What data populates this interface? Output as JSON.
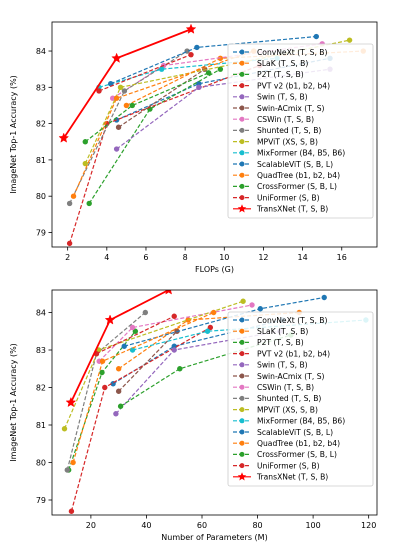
{
  "chart_data": [
    {
      "type": "line",
      "xlabel": "FLOPs (G)",
      "ylabel": "ImageNet Top-1 Accuracy (%)",
      "xlim": [
        1.2,
        17.8
      ],
      "ylim": [
        78.6,
        84.8
      ],
      "xticks": [
        2,
        4,
        6,
        8,
        10,
        12,
        14,
        16
      ],
      "yticks": [
        79,
        80,
        81,
        82,
        83,
        84
      ],
      "grid": false,
      "legend": "right",
      "series": [
        {
          "name": "ConvNeXt (T, S, B)",
          "color": "#1f77b4",
          "marker": "circle",
          "dashed": true,
          "x": [
            4.5,
            8.7,
            15.4
          ],
          "y": [
            82.1,
            83.1,
            83.8
          ]
        },
        {
          "name": "SLaK (T, S, B)",
          "color": "#ff7f0e",
          "marker": "circle",
          "dashed": true,
          "x": [
            5.0,
            9.8,
            17.1
          ],
          "y": [
            82.5,
            83.8,
            84.0
          ]
        },
        {
          "name": "P2T (T, S, B)",
          "color": "#2ca02c",
          "marker": "circle",
          "dashed": true,
          "x": [
            3.1,
            6.2,
            9.8
          ],
          "y": [
            79.8,
            82.4,
            83.5
          ]
        },
        {
          "name": "PVT v2 (b1, b2, b4)",
          "color": "#d62728",
          "marker": "circle",
          "dashed": true,
          "x": [
            2.1,
            4.0,
            11.8
          ],
          "y": [
            78.7,
            82.0,
            83.6
          ]
        },
        {
          "name": "Swin (T, S, B)",
          "color": "#9467bd",
          "marker": "circle",
          "dashed": true,
          "x": [
            4.5,
            8.7,
            15.4
          ],
          "y": [
            81.3,
            83.0,
            83.5
          ]
        },
        {
          "name": "Swin-ACmix (T, S)",
          "color": "#8c564b",
          "marker": "circle",
          "dashed": true,
          "x": [
            4.6,
            9.0
          ],
          "y": [
            81.9,
            83.5
          ]
        },
        {
          "name": "CSWin (T, S, B)",
          "color": "#e377c2",
          "marker": "circle",
          "dashed": true,
          "x": [
            4.3,
            6.9,
            15.0
          ],
          "y": [
            82.7,
            83.6,
            84.2
          ]
        },
        {
          "name": "Shunted (T, S, B)",
          "color": "#7f7f7f",
          "marker": "circle",
          "dashed": true,
          "x": [
            2.1,
            4.9,
            8.1
          ],
          "y": [
            79.8,
            82.9,
            84.0
          ]
        },
        {
          "name": "MPViT (XS, S, B)",
          "color": "#bcbd22",
          "marker": "circle",
          "dashed": true,
          "x": [
            2.9,
            4.7,
            16.4
          ],
          "y": [
            80.9,
            83.0,
            84.3
          ]
        },
        {
          "name": "MixFormer (B4, B5, B6)",
          "color": "#17becf",
          "marker": "circle",
          "dashed": true,
          "x": [
            3.6,
            6.8,
            12.7
          ],
          "y": [
            83.0,
            83.5,
            83.8
          ]
        },
        {
          "name": "ScalableViT (S, B, L)",
          "color": "#1f77b4",
          "marker": "circle",
          "dashed": true,
          "x": [
            4.2,
            8.6,
            14.7
          ],
          "y": [
            83.1,
            84.1,
            84.4
          ]
        },
        {
          "name": "QuadTree (b1, b2, b4)",
          "color": "#ff7f0e",
          "marker": "circle",
          "dashed": true,
          "x": [
            2.3,
            4.5,
            11.5
          ],
          "y": [
            80.0,
            82.7,
            84.0
          ]
        },
        {
          "name": "CrossFormer (S, B, L)",
          "color": "#2ca02c",
          "marker": "circle",
          "dashed": true,
          "x": [
            2.9,
            5.3,
            9.2
          ],
          "y": [
            81.5,
            82.5,
            83.4
          ]
        },
        {
          "name": "UniFormer (S, B)",
          "color": "#d62728",
          "marker": "circle",
          "dashed": true,
          "x": [
            3.6,
            8.3
          ],
          "y": [
            82.9,
            83.9
          ]
        },
        {
          "name": "TransXNet (T, S, B)",
          "color": "#ff0000",
          "marker": "star",
          "dashed": false,
          "x": [
            1.8,
            4.5,
            8.3
          ],
          "y": [
            81.6,
            83.8,
            84.6
          ]
        }
      ]
    },
    {
      "type": "line",
      "xlabel": "Number of Parameters (M)",
      "ylabel": "ImageNet Top-1 Accuracy (%)",
      "xlim": [
        6,
        123
      ],
      "ylim": [
        78.6,
        84.6
      ],
      "xticks": [
        20,
        40,
        60,
        80,
        100,
        120
      ],
      "yticks": [
        79,
        80,
        81,
        82,
        83,
        84
      ],
      "grid": false,
      "legend": "right",
      "series": [
        {
          "name": "ConvNeXt (T, S, B)",
          "color": "#1f77b4",
          "marker": "circle",
          "dashed": true,
          "x": [
            28,
            50,
            89
          ],
          "y": [
            82.1,
            83.1,
            83.8
          ]
        },
        {
          "name": "SLaK (T, S, B)",
          "color": "#ff7f0e",
          "marker": "circle",
          "dashed": true,
          "x": [
            30,
            55,
            95
          ],
          "y": [
            82.5,
            83.8,
            84.0
          ]
        },
        {
          "name": "P2T (T, S, B)",
          "color": "#2ca02c",
          "marker": "circle",
          "dashed": true,
          "x": [
            12,
            24,
            36
          ],
          "y": [
            79.8,
            82.4,
            83.5
          ]
        },
        {
          "name": "PVT v2 (b1, b2, b4)",
          "color": "#d62728",
          "marker": "circle",
          "dashed": true,
          "x": [
            13,
            25,
            63
          ],
          "y": [
            78.7,
            82.0,
            83.6
          ]
        },
        {
          "name": "Swin (T, S, B)",
          "color": "#9467bd",
          "marker": "circle",
          "dashed": true,
          "x": [
            29,
            50,
            88
          ],
          "y": [
            81.3,
            83.0,
            83.5
          ]
        },
        {
          "name": "Swin-ACmix (T, S)",
          "color": "#8c564b",
          "marker": "circle",
          "dashed": true,
          "x": [
            30,
            51
          ],
          "y": [
            81.9,
            83.5
          ]
        },
        {
          "name": "CSWin (T, S, B)",
          "color": "#e377c2",
          "marker": "circle",
          "dashed": true,
          "x": [
            23,
            35,
            78
          ],
          "y": [
            82.7,
            83.6,
            84.2
          ]
        },
        {
          "name": "Shunted (T, S, B)",
          "color": "#7f7f7f",
          "marker": "circle",
          "dashed": true,
          "x": [
            11.5,
            22,
            39.6
          ],
          "y": [
            79.8,
            82.9,
            84.0
          ]
        },
        {
          "name": "MPViT (XS, S, B)",
          "color": "#bcbd22",
          "marker": "circle",
          "dashed": true,
          "x": [
            10.5,
            22.8,
            74.8
          ],
          "y": [
            80.9,
            83.0,
            84.3
          ]
        },
        {
          "name": "MixFormer (B4, B5, B6)",
          "color": "#17becf",
          "marker": "circle",
          "dashed": true,
          "x": [
            35,
            62,
            119
          ],
          "y": [
            83.0,
            83.5,
            83.8
          ]
        },
        {
          "name": "ScalableViT (S, B, L)",
          "color": "#1f77b4",
          "marker": "circle",
          "dashed": true,
          "x": [
            32,
            81,
            104
          ],
          "y": [
            83.1,
            84.1,
            84.4
          ]
        },
        {
          "name": "QuadTree (b1, b2, b4)",
          "color": "#ff7f0e",
          "marker": "circle",
          "dashed": true,
          "x": [
            13.6,
            24.2,
            64.2
          ],
          "y": [
            80.0,
            82.7,
            84.0
          ]
        },
        {
          "name": "CrossFormer (S, B, L)",
          "color": "#2ca02c",
          "marker": "circle",
          "dashed": true,
          "x": [
            30.7,
            52,
            92
          ],
          "y": [
            81.5,
            82.5,
            83.4
          ]
        },
        {
          "name": "UniFormer (S, B)",
          "color": "#d62728",
          "marker": "circle",
          "dashed": true,
          "x": [
            22,
            50
          ],
          "y": [
            82.9,
            83.9
          ]
        },
        {
          "name": "TransXNet (T, S, B)",
          "color": "#ff0000",
          "marker": "star",
          "dashed": false,
          "x": [
            12.8,
            26.9,
            48
          ],
          "y": [
            81.6,
            83.8,
            84.6
          ]
        }
      ]
    }
  ]
}
